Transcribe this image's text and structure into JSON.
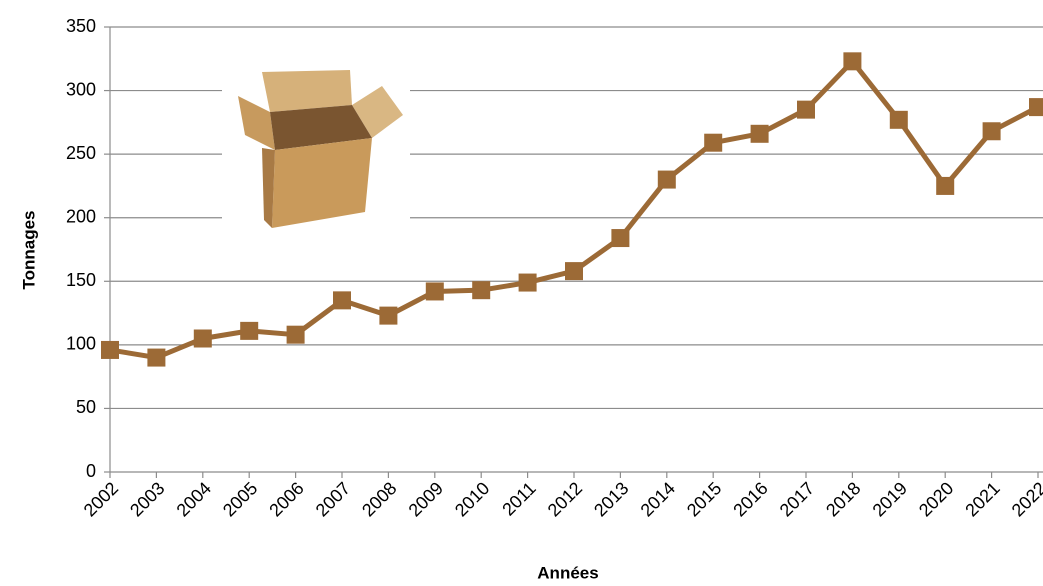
{
  "chart_data": {
    "type": "line",
    "x_label": "Années",
    "y_label": "Tonnages",
    "categories": [
      "2002",
      "2003",
      "2004",
      "2005",
      "2006",
      "2007",
      "2008",
      "2009",
      "2010",
      "2011",
      "2012",
      "2013",
      "2014",
      "2015",
      "2016",
      "2017",
      "2018",
      "2019",
      "2020",
      "2021",
      "2022"
    ],
    "series": [
      {
        "name": "Tonnages",
        "color": "#9c6a36",
        "values": [
          96,
          90,
          105,
          111,
          108,
          135,
          123,
          142,
          143,
          149,
          158,
          184,
          230,
          259,
          266,
          285,
          323,
          277,
          225,
          268,
          287
        ]
      }
    ],
    "ylim": [
      0,
      350
    ],
    "yticks": [
      0,
      50,
      100,
      150,
      200,
      250,
      300,
      350
    ],
    "grid": true
  }
}
